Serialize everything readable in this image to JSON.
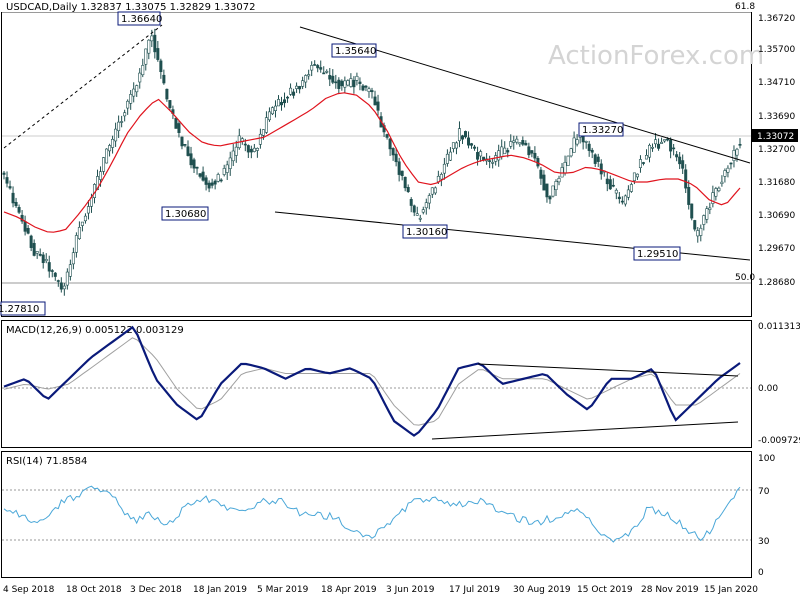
{
  "watermark": "ActionForex.com",
  "price_panel": {
    "header": "USDCAD,Daily  1.32837 1.33075 1.32829 1.33072",
    "current_price": "1.33072",
    "fib_labels": [
      "61.8",
      "50.0"
    ],
    "y_ticks": [
      "1.36720",
      "1.35700",
      "1.34710",
      "1.33690",
      "1.32700",
      "1.31680",
      "1.30690",
      "1.29670",
      "1.28680"
    ],
    "annotations": [
      "1.36640",
      "1.35640",
      "1.33270",
      "1.30680",
      "1.30160",
      "1.29510",
      "1.27810"
    ]
  },
  "macd_panel": {
    "header": "MACD(12,26,9) 0.005122 0.003129",
    "y_ticks": [
      "0.011313",
      "0.00",
      "-0.009729"
    ]
  },
  "rsi_panel": {
    "header": "RSI(14) 71.8584",
    "y_ticks": [
      "100",
      "70",
      "30",
      "0"
    ]
  },
  "x_axis": [
    "4 Sep 2018",
    "18 Oct 2018",
    "3 Dec 2018",
    "18 Jan 2019",
    "5 Mar 2019",
    "18 Apr 2019",
    "3 Jun 2019",
    "17 Jul 2019",
    "30 Aug 2019",
    "15 Oct 2019",
    "28 Nov 2019",
    "15 Jan 2020"
  ],
  "colors": {
    "candles": "#1f4f4f",
    "ma": "#e0141e",
    "macd": "#0a1a7a",
    "signal": "#a0a0a0",
    "rsi": "#4aa7d8",
    "trendline": "#000000"
  },
  "chart_data": [
    {
      "type": "candlestick",
      "title": "USDCAD,Daily",
      "ohlc_last": {
        "open": 1.32837,
        "high": 1.33075,
        "low": 1.32829,
        "close": 1.33072
      },
      "ylim": [
        1.2712,
        1.3725
      ],
      "x": [
        "4 Sep 2018",
        "18 Oct 2018",
        "3 Dec 2018",
        "18 Jan 2019",
        "5 Mar 2019",
        "18 Apr 2019",
        "3 Jun 2019",
        "17 Jul 2019",
        "30 Aug 2019",
        "15 Oct 2019",
        "28 Nov 2019",
        "15 Jan 2020"
      ],
      "close_path": [
        1.318,
        1.305,
        1.293,
        1.288,
        1.279,
        1.299,
        1.312,
        1.326,
        1.338,
        1.349,
        1.366,
        1.345,
        1.33,
        1.32,
        1.315,
        1.319,
        1.33,
        1.326,
        1.338,
        1.344,
        1.348,
        1.355,
        1.351,
        1.348,
        1.35,
        1.345,
        1.33,
        1.318,
        1.303,
        1.312,
        1.323,
        1.333,
        1.326,
        1.322,
        1.327,
        1.33,
        1.325,
        1.31,
        1.321,
        1.332,
        1.325,
        1.316,
        1.309,
        1.32,
        1.328,
        1.33,
        1.322,
        1.297,
        1.309,
        1.32,
        1.33
      ],
      "ma_path": [
        1.306,
        1.304,
        1.301,
        1.299,
        1.3,
        1.306,
        1.313,
        1.322,
        1.332,
        1.339,
        1.344,
        1.339,
        1.333,
        1.329,
        1.328,
        1.329,
        1.33,
        1.331,
        1.334,
        1.337,
        1.34,
        1.344,
        1.346,
        1.345,
        1.341,
        1.333,
        1.323,
        1.316,
        1.315,
        1.318,
        1.321,
        1.323,
        1.324,
        1.325,
        1.324,
        1.322,
        1.319,
        1.319,
        1.321,
        1.32,
        1.318,
        1.316,
        1.316,
        1.317,
        1.317,
        1.315,
        1.31,
        1.308,
        1.314
      ],
      "highs_marked": [
        1.3664,
        1.3564,
        1.3327
      ],
      "lows_marked": [
        1.3068,
        1.3016,
        1.2951,
        1.2781
      ],
      "fib_levels": [
        {
          "label": "61.8",
          "value": 1.3725
        },
        {
          "label": "50.0",
          "value": 1.2844
        }
      ]
    },
    {
      "type": "line",
      "title": "MACD(12,26,9)",
      "ylim": [
        -0.011,
        0.013
      ],
      "series": [
        {
          "name": "MACD",
          "values": [
            0.0005,
            0.002,
            -0.002,
            0.002,
            0.006,
            0.009,
            0.012,
            0.002,
            -0.003,
            -0.006,
            0.001,
            0.005,
            0.004,
            0.002,
            0.004,
            0.003,
            0.004,
            0.002,
            -0.006,
            -0.009,
            -0.004,
            0.004,
            0.005,
            0.001,
            0.002,
            0.003,
            -0.001,
            -0.004,
            0.002,
            0.002,
            0.004,
            -0.006,
            -0.002,
            0.002,
            0.005
          ]
        },
        {
          "name": "Signal",
          "values": [
            0.0,
            0.001,
            0.0,
            0.001,
            0.004,
            0.007,
            0.01,
            0.006,
            0.0,
            -0.004,
            -0.002,
            0.003,
            0.004,
            0.003,
            0.003,
            0.003,
            0.003,
            0.003,
            -0.003,
            -0.007,
            -0.006,
            0.001,
            0.004,
            0.002,
            0.002,
            0.002,
            0.0,
            -0.002,
            0.0,
            0.002,
            0.003,
            -0.003,
            -0.003,
            0.0,
            0.003
          ]
        }
      ]
    },
    {
      "type": "line",
      "title": "RSI(14)",
      "ylim": [
        0,
        100
      ],
      "series": [
        {
          "name": "RSI",
          "values": [
            56,
            48,
            44,
            58,
            66,
            73,
            62,
            45,
            50,
            42,
            58,
            62,
            56,
            55,
            60,
            62,
            52,
            50,
            48,
            36,
            34,
            42,
            58,
            64,
            60,
            58,
            62,
            52,
            46,
            44,
            48,
            55,
            42,
            30,
            34,
            55,
            50,
            40,
            30,
            50,
            72
          ]
        }
      ]
    }
  ]
}
